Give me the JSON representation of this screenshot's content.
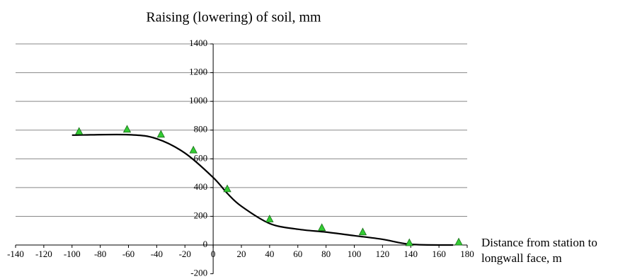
{
  "chart_data": {
    "type": "scatter",
    "title": "Raising (lowering) of soil, mm",
    "x_label": "Distance from station to longwall face, m",
    "series": [
      {
        "type": "scatter",
        "color": "#33cc33",
        "x": [
          -95,
          -61,
          -37,
          -14,
          10,
          40,
          77,
          106,
          139,
          174
        ],
        "values": [
          790,
          805,
          770,
          660,
          390,
          180,
          120,
          90,
          15,
          20
        ]
      },
      {
        "type": "line",
        "color": "#000000",
        "x": [
          -100,
          -60,
          -40,
          -20,
          0,
          10,
          20,
          40,
          60,
          80,
          100,
          120,
          140,
          170
        ],
        "values": [
          765,
          768,
          740,
          640,
          470,
          360,
          270,
          150,
          110,
          90,
          65,
          40,
          5,
          0
        ]
      }
    ],
    "xlim": [
      -140,
      180
    ],
    "xticks": [
      -140,
      -120,
      -100,
      -80,
      -60,
      -40,
      -20,
      0,
      20,
      40,
      60,
      80,
      100,
      120,
      140,
      160,
      180
    ],
    "ylim": [
      -200,
      1400
    ],
    "yticks": [
      -200,
      0,
      200,
      400,
      600,
      800,
      1000,
      1200,
      1400
    ],
    "grid": true
  }
}
